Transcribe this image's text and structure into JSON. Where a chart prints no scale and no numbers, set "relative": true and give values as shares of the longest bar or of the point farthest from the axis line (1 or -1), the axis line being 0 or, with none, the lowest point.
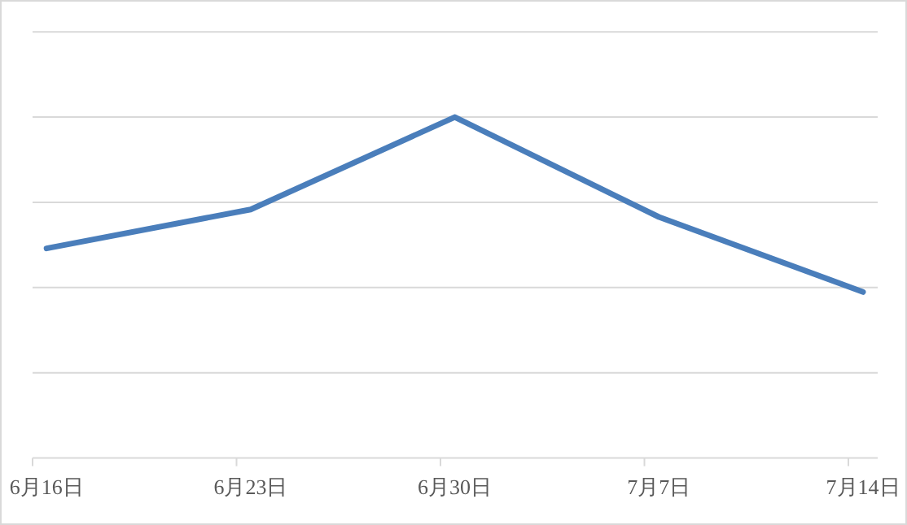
{
  "chart_data": {
    "type": "line",
    "relative": true,
    "grid": "y",
    "categories": [
      "6月16日",
      "6月23日",
      "6月30日",
      "7月7日",
      "7月14日"
    ],
    "series": [
      {
        "color": "#4a7ebb",
        "values": [
          0.615,
          0.729,
          1,
          0.707,
          0.487
        ]
      }
    ]
  }
}
